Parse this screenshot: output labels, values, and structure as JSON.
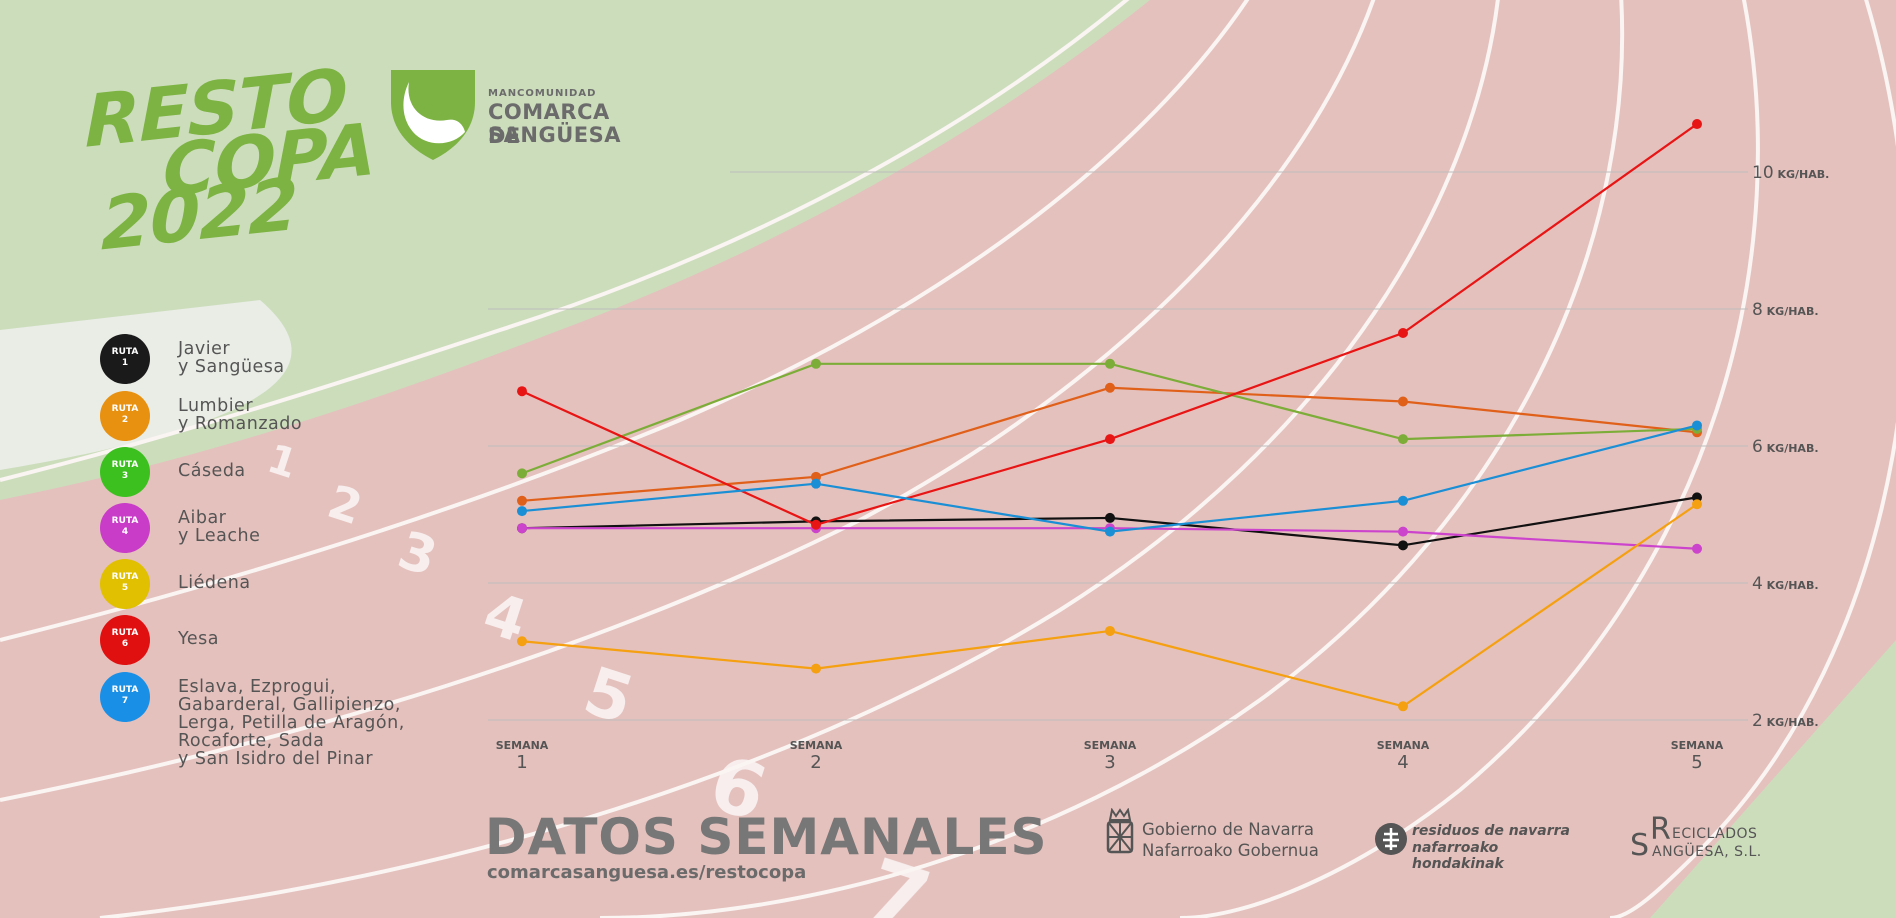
{
  "branding": {
    "title_lines": [
      "RESTO",
      "COPA",
      "2022"
    ],
    "org_small": "MANCOMUNIDAD",
    "org_line1": "COMARCA DE",
    "org_line2": "SANGÜESA",
    "accent_color": "#7cb342"
  },
  "legend": {
    "items": [
      {
        "badge_word": "RUTA",
        "badge_num": "1",
        "label": "Javier\ny Sangüesa",
        "color": "#1a1a1a"
      },
      {
        "badge_word": "RUTA",
        "badge_num": "2",
        "label": "Lumbier\ny Romanzado",
        "color": "#e8900f"
      },
      {
        "badge_word": "RUTA",
        "badge_num": "3",
        "label": "Cáseda",
        "color": "#3cc020"
      },
      {
        "badge_word": "RUTA",
        "badge_num": "4",
        "label": "Aibar\ny Leache",
        "color": "#c83cc8"
      },
      {
        "badge_word": "RUTA",
        "badge_num": "5",
        "label": "Liédena",
        "color": "#e0c000"
      },
      {
        "badge_word": "RUTA",
        "badge_num": "6",
        "label": "Yesa",
        "color": "#e01010"
      },
      {
        "badge_word": "RUTA",
        "badge_num": "7",
        "label": "Eslava, Ezprogui,\nGabarderal, Gallipienzo,\nLerga, Petilla de Aragón,\nRocaforte, Sada\ny San Isidro del Pinar",
        "color": "#1a8fe6"
      }
    ]
  },
  "chart_data": {
    "type": "line",
    "x": [
      "1",
      "2",
      "3",
      "4",
      "5"
    ],
    "x_tick_prefix": "SEMANA",
    "y_ticks": [
      2,
      4,
      6,
      8,
      10
    ],
    "y_unit": "KG/HAB.",
    "ylim": [
      2,
      10
    ],
    "grid": true,
    "series": [
      {
        "color": "#111111",
        "values": [
          4.8,
          4.9,
          4.95,
          4.55,
          5.25
        ]
      },
      {
        "color": "#e0601a",
        "values": [
          5.2,
          5.55,
          6.85,
          6.65,
          6.2
        ]
      },
      {
        "color": "#7cad38",
        "values": [
          5.6,
          7.2,
          7.2,
          6.1,
          6.25
        ]
      },
      {
        "color": "#cc44cc",
        "values": [
          4.8,
          4.8,
          4.8,
          4.75,
          4.5
        ]
      },
      {
        "color": "#f5a010",
        "values": [
          3.15,
          2.75,
          3.3,
          2.2,
          5.15
        ]
      },
      {
        "color": "#e81515",
        "values": [
          6.8,
          4.85,
          6.1,
          7.65,
          10.7
        ]
      },
      {
        "color": "#1a8fd6",
        "values": [
          5.05,
          5.45,
          4.75,
          5.2,
          6.3
        ]
      }
    ]
  },
  "footer": {
    "title": "DATOS SEMANALES",
    "url": "comarcasanguesa.es/restocopa",
    "gov_line1": "Gobierno de Navarra",
    "gov_line2": "Nafarroako Gobernua",
    "res_line1": "residuos de navarra",
    "res_line2": "nafarroako hondakinak",
    "rec_S": "S",
    "rec_R": "R",
    "rec_line1": "ECICLADOS",
    "rec_line2": "ANGÜESA, S.L."
  }
}
